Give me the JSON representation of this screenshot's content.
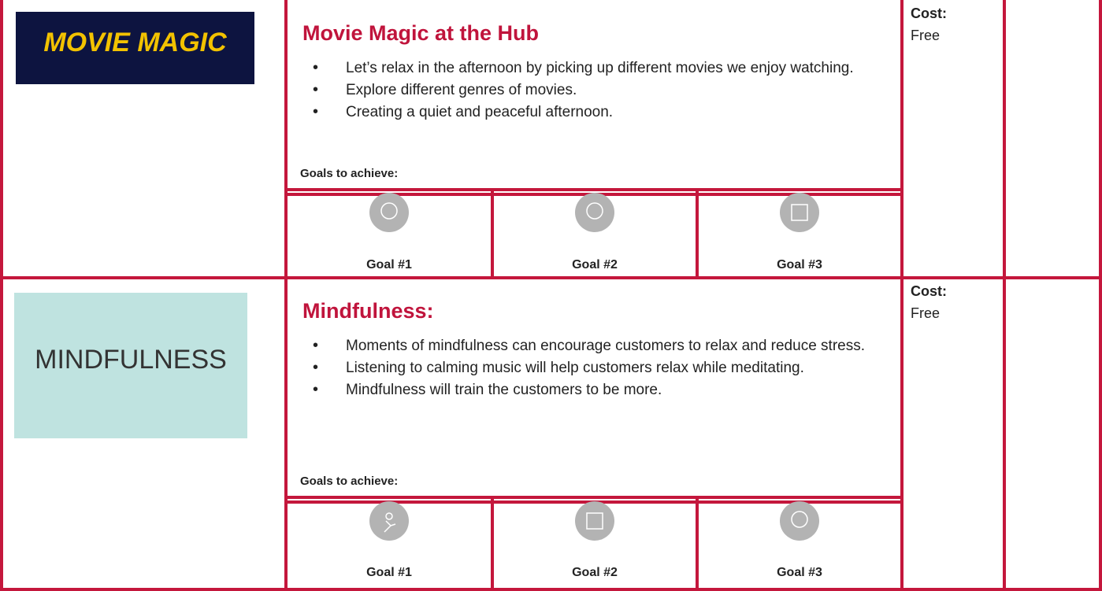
{
  "rows": [
    {
      "image_text": "MOVIE MAGIC",
      "title": "Movie Magic at the Hub",
      "bullets": [
        "Let’s relax in the afternoon by picking up different movies we enjoy watching.",
        "Explore different genres of movies.",
        "Creating a quiet and peaceful afternoon."
      ],
      "goals_heading": "Goals to achieve:",
      "goals": [
        "Goal #1",
        "Goal #2",
        "Goal #3"
      ],
      "cost_label": "Cost:",
      "cost": "Free"
    },
    {
      "image_text": "MINDFULNESS",
      "title": "Mindfulness:",
      "bullets": [
        "Moments of mindfulness can encourage customers to relax and reduce stress.",
        "Listening to calming music will help customers relax while meditating.",
        "Mindfulness will train the customers to be more."
      ],
      "goals_heading": "Goals to achieve:",
      "goals": [
        "Goal #1",
        "Goal #2",
        "Goal #3"
      ],
      "cost_label": "Cost:",
      "cost": "Free"
    }
  ]
}
